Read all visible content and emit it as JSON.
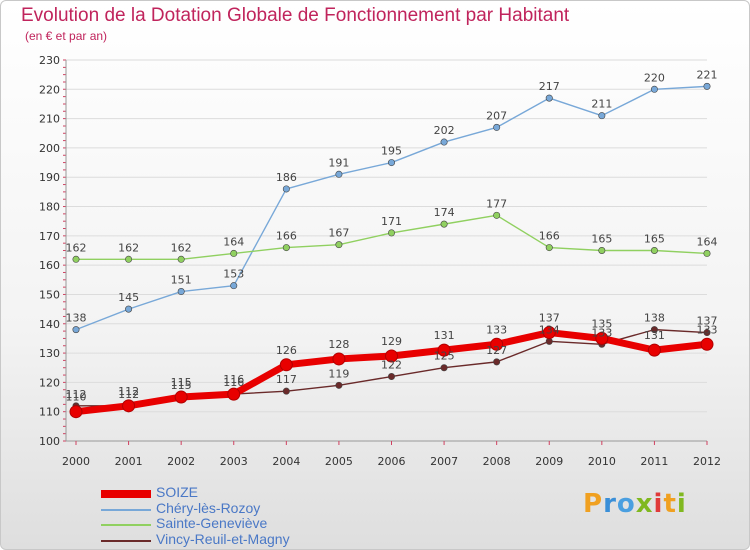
{
  "title": "Evolution de la Dotation Globale de Fonctionnement par Habitant",
  "subtitle": "(en € et par an)",
  "logo": {
    "chars": [
      "P",
      "r",
      "o",
      "x",
      "i",
      "t",
      "i"
    ],
    "colors": [
      "#f0a020",
      "#3a8fd8",
      "#4a9fe0",
      "#80b820",
      "#e03a3a",
      "#f0a020",
      "#80b820"
    ]
  },
  "chart_data": {
    "type": "line",
    "x": [
      "2000",
      "2001",
      "2002",
      "2003",
      "2004",
      "2005",
      "2006",
      "2007",
      "2008",
      "2009",
      "2010",
      "2011",
      "2012"
    ],
    "ylim": [
      100,
      230
    ],
    "yticks": [
      100,
      110,
      120,
      130,
      140,
      150,
      160,
      170,
      180,
      190,
      200,
      210,
      220,
      230
    ],
    "grid": "horizontal",
    "legend_position": "bottom-left",
    "series": [
      {
        "name": "SOIZE",
        "color": "#e80000",
        "values": [
          110,
          112,
          115,
          116,
          126,
          128,
          129,
          131,
          133,
          137,
          135,
          131,
          133
        ]
      },
      {
        "name": "Chéry-lès-Rozoy",
        "color": "#78a8d8",
        "values": [
          138,
          145,
          151,
          153,
          186,
          191,
          195,
          202,
          207,
          217,
          211,
          220,
          221
        ]
      },
      {
        "name": "Sainte-Geneviève",
        "color": "#90d060",
        "values": [
          162,
          162,
          162,
          164,
          166,
          167,
          171,
          174,
          177,
          166,
          165,
          165,
          164
        ]
      },
      {
        "name": "Vincy-Reuil-et-Magny",
        "color": "#6a2a2a",
        "values": [
          112,
          112,
          115,
          116,
          117,
          119,
          122,
          125,
          127,
          134,
          133,
          138,
          137
        ]
      }
    ]
  }
}
